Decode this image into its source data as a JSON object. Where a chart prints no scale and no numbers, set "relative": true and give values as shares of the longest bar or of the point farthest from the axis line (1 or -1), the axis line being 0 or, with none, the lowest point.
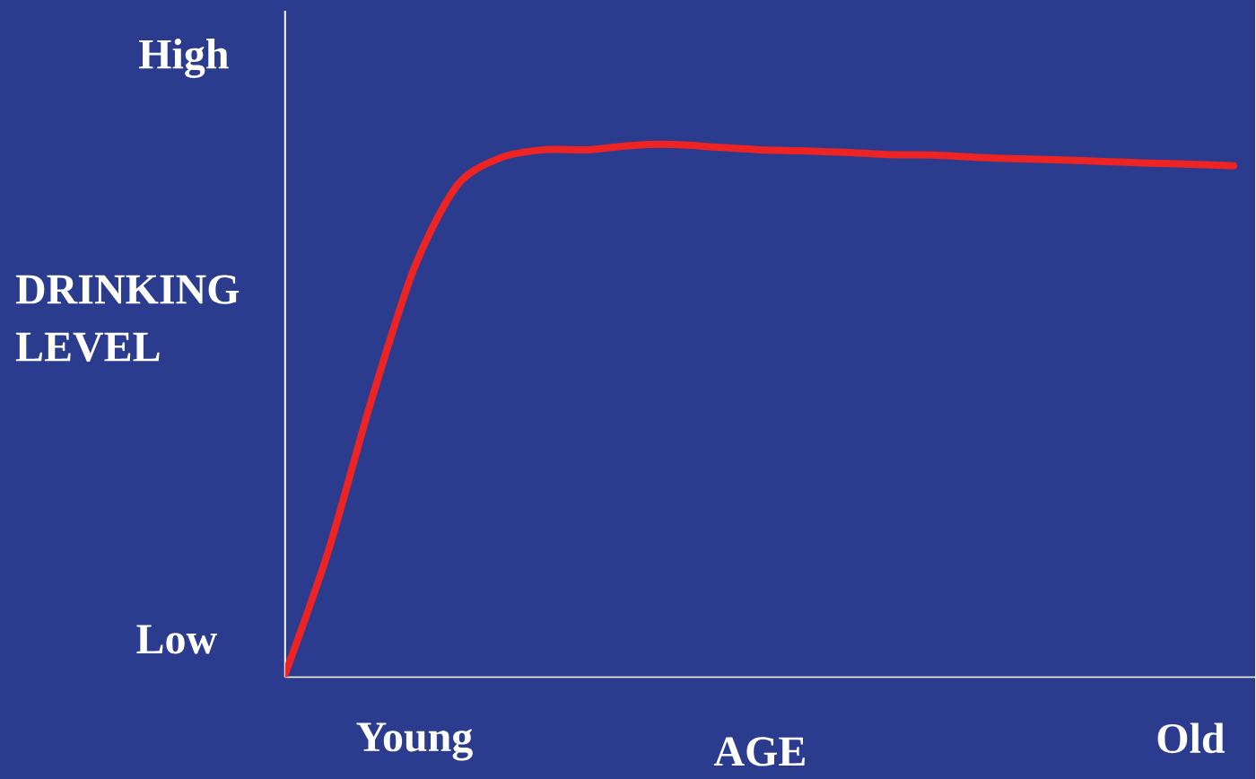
{
  "chart_data": {
    "type": "line",
    "relative": true,
    "xlabel": "AGE",
    "ylabel": "DRINKING LEVEL",
    "categories": [
      null,
      null,
      null,
      "Young",
      null,
      null,
      null,
      null,
      null,
      null,
      null,
      null,
      null,
      null,
      null,
      null,
      null,
      null,
      null,
      null,
      null,
      "Old",
      null
    ],
    "series": [
      {
        "color": "#ee2424",
        "values": [
          0.005,
          0.236,
          0.519,
          0.769,
          0.924,
          0.975,
          0.99,
          0.99,
          0.998,
          1,
          0.995,
          0.99,
          0.988,
          0.985,
          0.981,
          0.98,
          0.976,
          0.973,
          0.971,
          0.968,
          0.965,
          0.963,
          0.96
        ]
      }
    ],
    "annotations": [
      "High",
      "Low"
    ]
  }
}
